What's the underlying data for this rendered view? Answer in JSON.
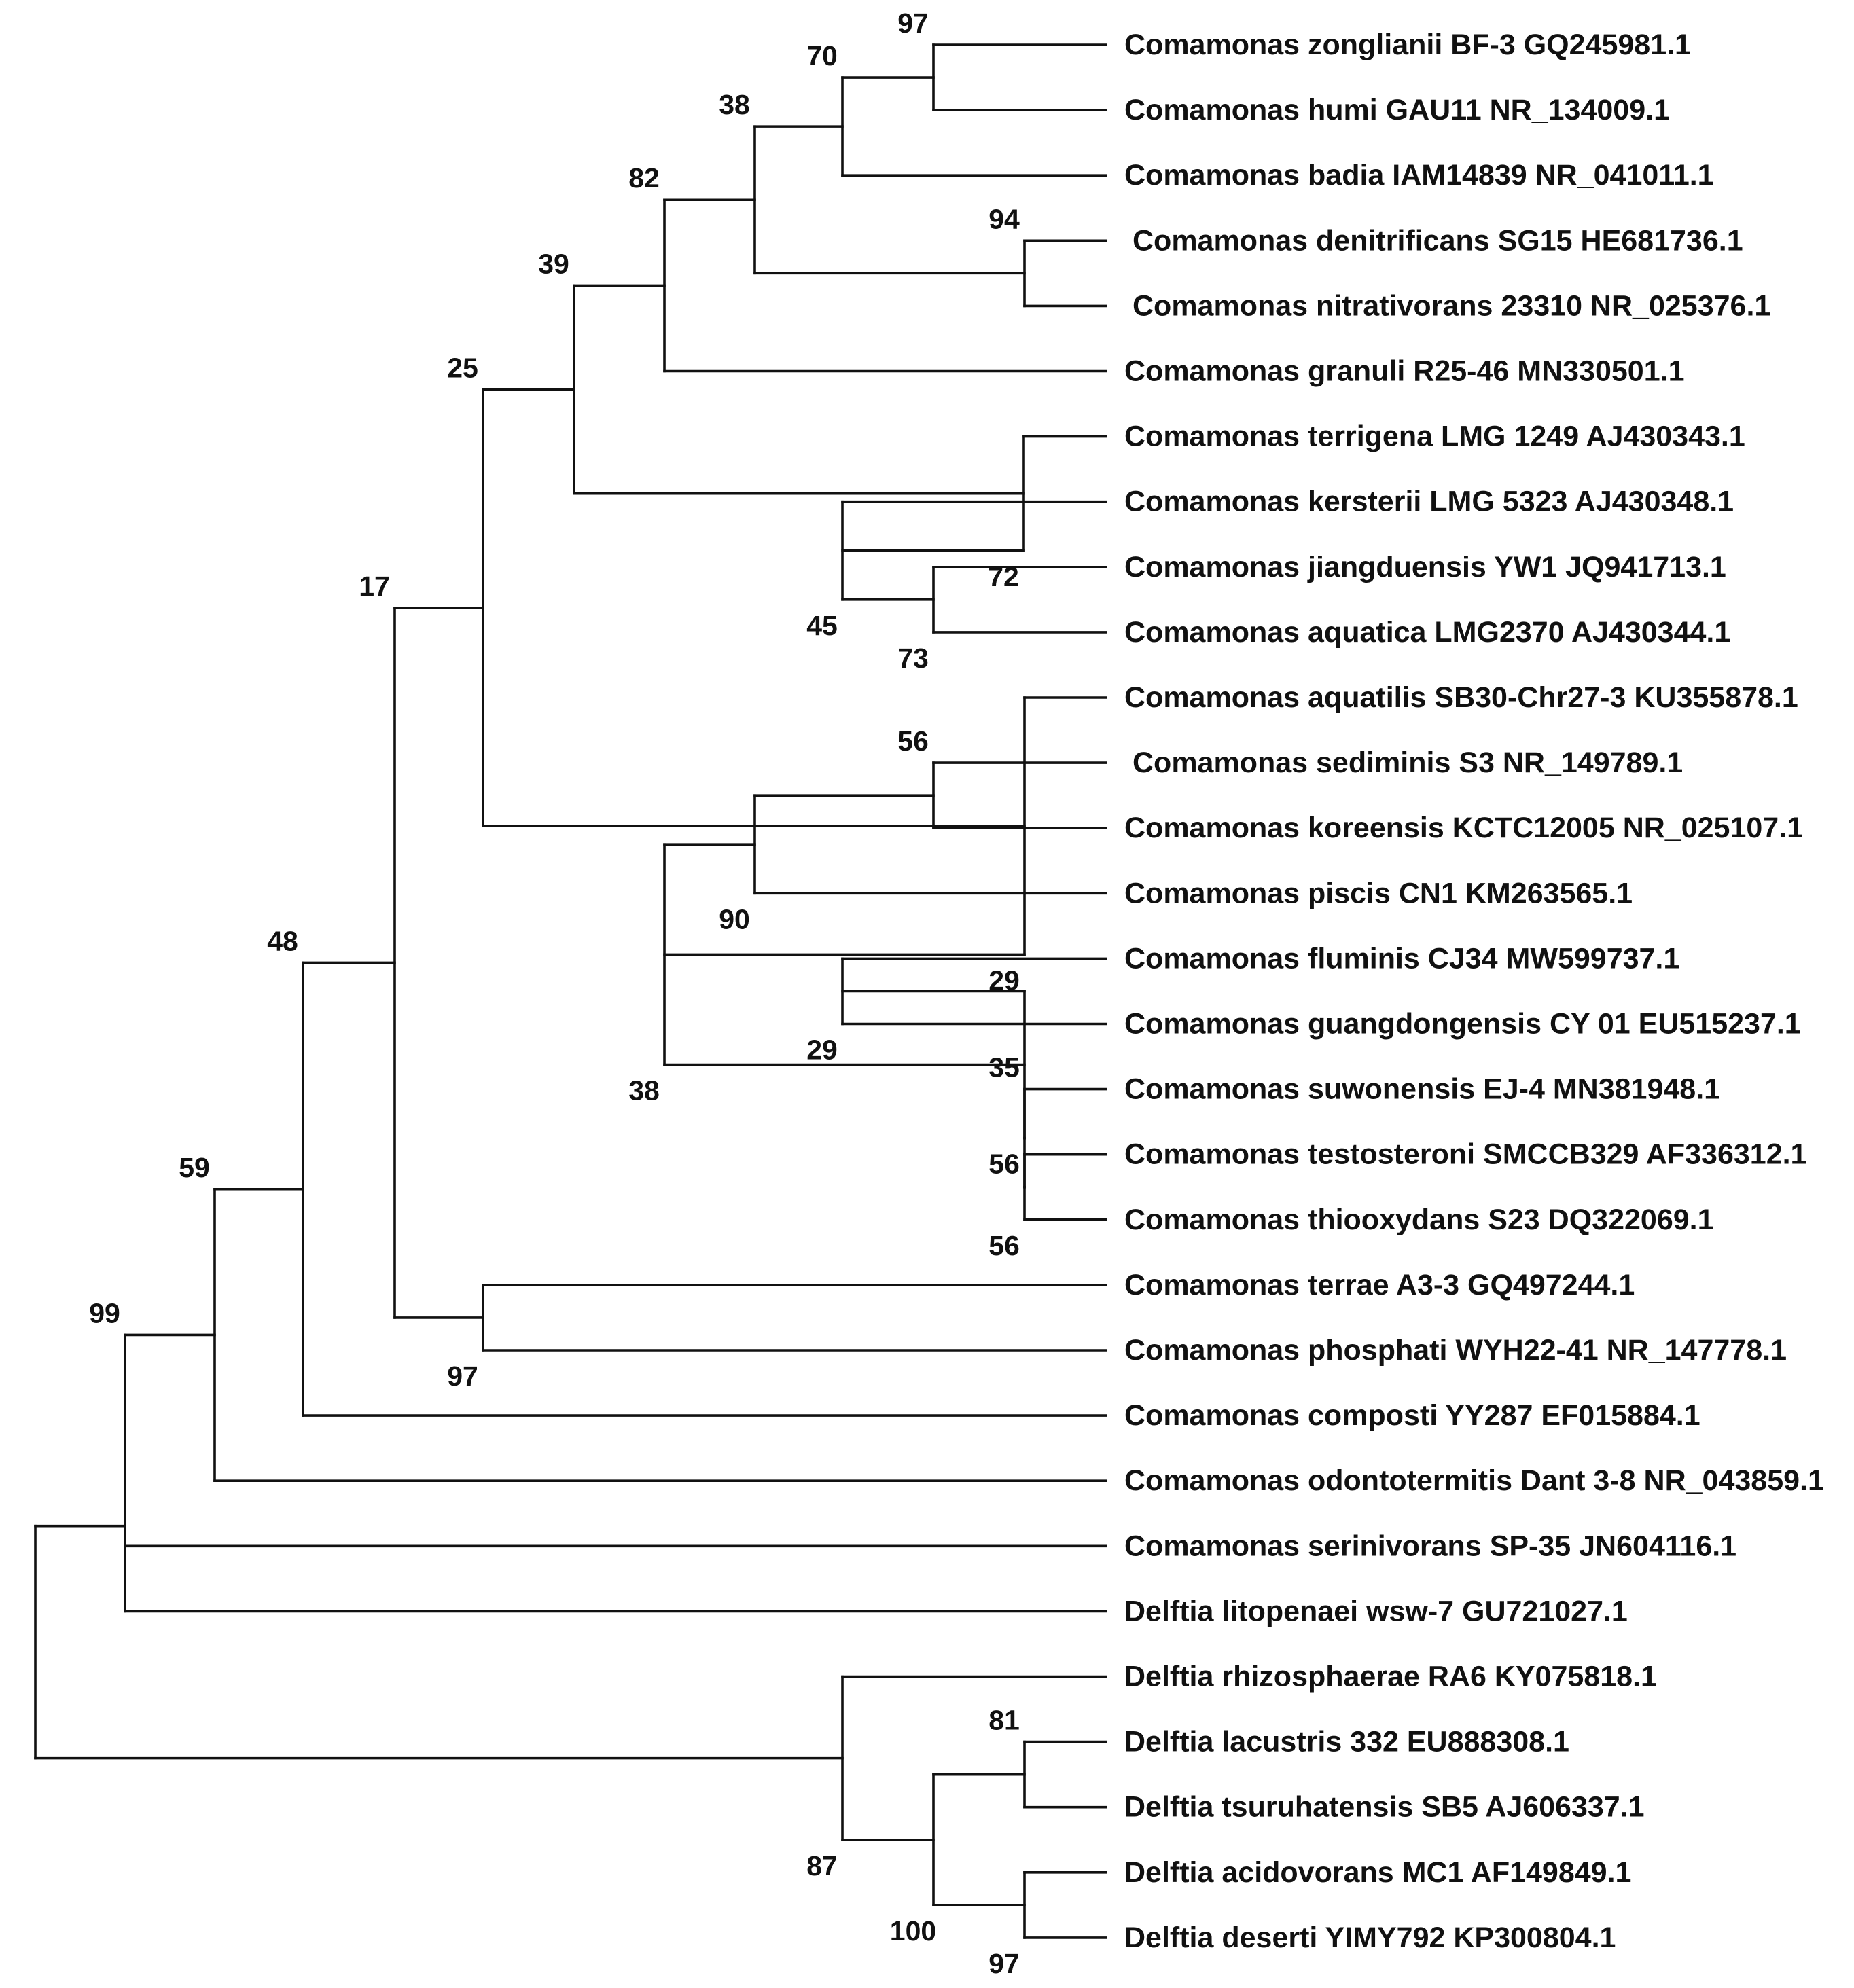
{
  "figure": "phylogenetic tree",
  "leaves": [
    "Comamonas zonglianii BF-3 GQ245981.1",
    "Comamonas humi GAU11 NR_134009.1",
    "Comamonas badia IAM14839 NR_041011.1",
    "Comamonas denitrificans SG15 HE681736.1",
    "Comamonas nitrativorans 23310 NR_025376.1",
    "Comamonas granuli R25-46 MN330501.1",
    "Comamonas terrigena LMG 1249 AJ430343.1",
    "Comamonas kersterii LMG 5323 AJ430348.1",
    "Comamonas jiangduensis YW1 JQ941713.1",
    "Comamonas aquatica LMG2370 AJ430344.1",
    "Comamonas aquatilis SB30-Chr27-3 KU355878.1",
    "Comamonas sediminis S3 NR_149789.1",
    "Comamonas koreensis KCTC12005 NR_025107.1",
    "Comamonas piscis CN1 KM263565.1",
    "Comamonas fluminis CJ34 MW599737.1",
    "Comamonas guangdongensis CY 01 EU515237.1",
    "Comamonas suwonensis EJ-4 MN381948.1",
    "Comamonas testosteroni SMCCB329 AF336312.1",
    "Comamonas thiooxydans S23 DQ322069.1",
    "Comamonas terrae A3-3 GQ497244.1",
    "Comamonas phosphati WYH22-41 NR_147778.1",
    "Comamonas composti YY287 EF015884.1",
    "Comamonas odontotermitis Dant 3-8 NR_043859.1",
    "Comamonas serinivorans SP-35 JN604116.1",
    "Delftia litopenaei wsw-7 GU721027.1",
    "Delftia rhizosphaerae RA6 KY075818.1",
    "Delftia lacustris 332 EU888308.1",
    "Delftia tsuruhatensis SB5 AJ606337.1",
    "Delftia acidovorans MC1 AF149849.1",
    "Delftia deserti YIMY792 KP300804.1"
  ],
  "tree": {
    "children": [
      {
        "support": "99",
        "children": [
          {
            "support": "59",
            "children": [
              {
                "support": "48",
                "children": [
                  {
                    "support": "17",
                    "children": [
                      {
                        "support": "25",
                        "children": [
                          {
                            "support": "39",
                            "children": [
                              {
                                "support": "82",
                                "children": [
                                  {
                                    "support": "38",
                                    "children": [
                                      {
                                        "support": "70",
                                        "children": [
                                          {
                                            "support": "97",
                                            "children": [
                                              {
                                                "leaf": 0
                                              },
                                              {
                                                "leaf": 1
                                              }
                                            ]
                                          },
                                          {
                                            "leaf": 2
                                          }
                                        ]
                                      },
                                      {
                                        "support": "94",
                                        "children": [
                                          {
                                            "leaf": 3
                                          },
                                          {
                                            "leaf": 4
                                          }
                                        ]
                                      }
                                    ]
                                  },
                                  {
                                    "leaf": 5
                                  }
                                ]
                              },
                              {
                                "support": "72",
                                "children": [
                                  {
                                    "leaf": 6
                                  },
                                  {
                                    "support": "45",
                                    "children": [
                                      {
                                        "leaf": 7
                                      },
                                      {
                                        "support": "73",
                                        "children": [
                                          {
                                            "leaf": 8
                                          },
                                          {
                                            "leaf": 9
                                          }
                                        ]
                                      }
                                    ]
                                  }
                                ]
                              }
                            ]
                          },
                          {
                            "support": "29",
                            "children": [
                              {
                                "leaf": 10
                              },
                              {
                                "support": "38",
                                "children": [
                                  {
                                    "support": "90",
                                    "children": [
                                      {
                                        "support": "56",
                                        "children": [
                                          {
                                            "leaf": 11
                                          },
                                          {
                                            "leaf": 12
                                          }
                                        ]
                                      },
                                      {
                                        "leaf": 13
                                      }
                                    ]
                                  },
                                  {
                                    "support": "56",
                                    "children": [
                                      {
                                        "support": "29",
                                        "children": [
                                          {
                                            "leaf": 14
                                          },
                                          {
                                            "leaf": 15
                                          }
                                        ]
                                      },
                                      {
                                        "support": "35",
                                        "children": [
                                          {
                                            "leaf": 16
                                          },
                                          {
                                            "support": "56",
                                            "children": [
                                              {
                                                "leaf": 17
                                              },
                                              {
                                                "leaf": 18
                                              }
                                            ]
                                          }
                                        ]
                                      }
                                    ]
                                  }
                                ]
                              }
                            ]
                          }
                        ]
                      },
                      {
                        "support": "97",
                        "children": [
                          {
                            "leaf": 19
                          },
                          {
                            "leaf": 20
                          }
                        ]
                      }
                    ]
                  },
                  {
                    "leaf": 21
                  }
                ]
              },
              {
                "leaf": 22
              }
            ]
          },
          {
            "leaf": 23
          }
        ]
      },
      {
        "leaf": 24
      }
    ]
  },
  "outgroup": {
    "support": "87",
    "children": [
      {
        "leaf": 25
      },
      {
        "support": "100",
        "children": [
          {
            "support": "81",
            "children": [
              {
                "leaf": 26
              },
              {
                "leaf": 27
              }
            ]
          },
          {
            "support": "97",
            "children": [
              {
                "leaf": 28
              },
              {
                "leaf": 29
              }
            ]
          }
        ]
      }
    ]
  }
}
